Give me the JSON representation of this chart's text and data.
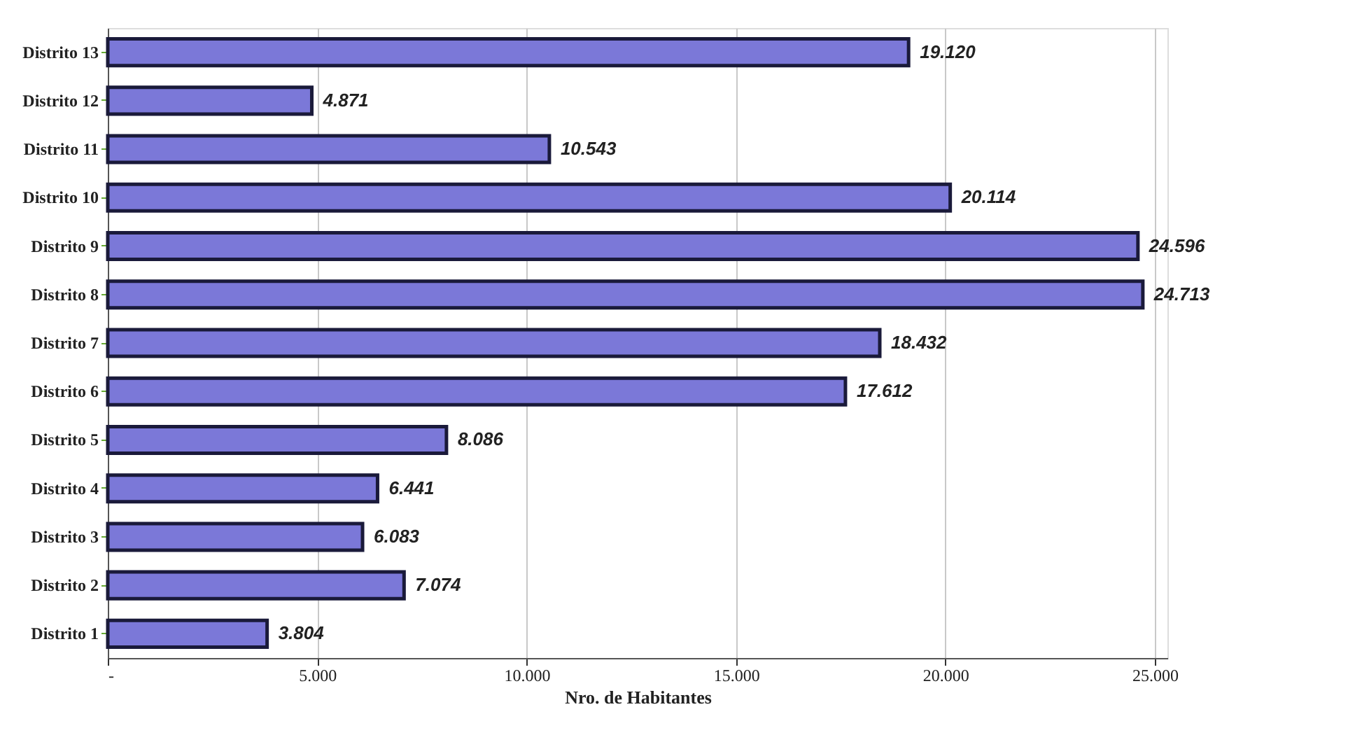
{
  "chart_data": {
    "type": "bar",
    "orientation": "horizontal",
    "xlabel": "Nro. de Habitantes",
    "categories": [
      "Distrito 13",
      "Distrito 12",
      "Distrito 11",
      "Distrito 10",
      "Distrito 9",
      "Distrito 8",
      "Distrito 7",
      "Distrito 6",
      "Distrito 5",
      "Distrito 4",
      "Distrito 3",
      "Distrito 2",
      "Distrito 1"
    ],
    "values": [
      19120,
      4871,
      10543,
      20114,
      24596,
      24713,
      18432,
      17612,
      8086,
      6441,
      6083,
      7074,
      3804
    ],
    "value_labels": [
      "19.120",
      "4.871",
      "10.543",
      "20.114",
      "24.596",
      "24.713",
      "18.432",
      "17.612",
      "8.086",
      "6.441",
      "6.083",
      "7.074",
      "3.804"
    ],
    "color": "#7b78d8",
    "xlim": [
      0,
      25300
    ],
    "xticks": [
      {
        "value": 0,
        "label": "-"
      },
      {
        "value": 5000,
        "label": "5.000"
      },
      {
        "value": 10000,
        "label": "10.000"
      },
      {
        "value": 15000,
        "label": "15.000"
      },
      {
        "value": 20000,
        "label": "20.000"
      },
      {
        "value": 25000,
        "label": "25.000"
      }
    ],
    "grid": "x"
  }
}
